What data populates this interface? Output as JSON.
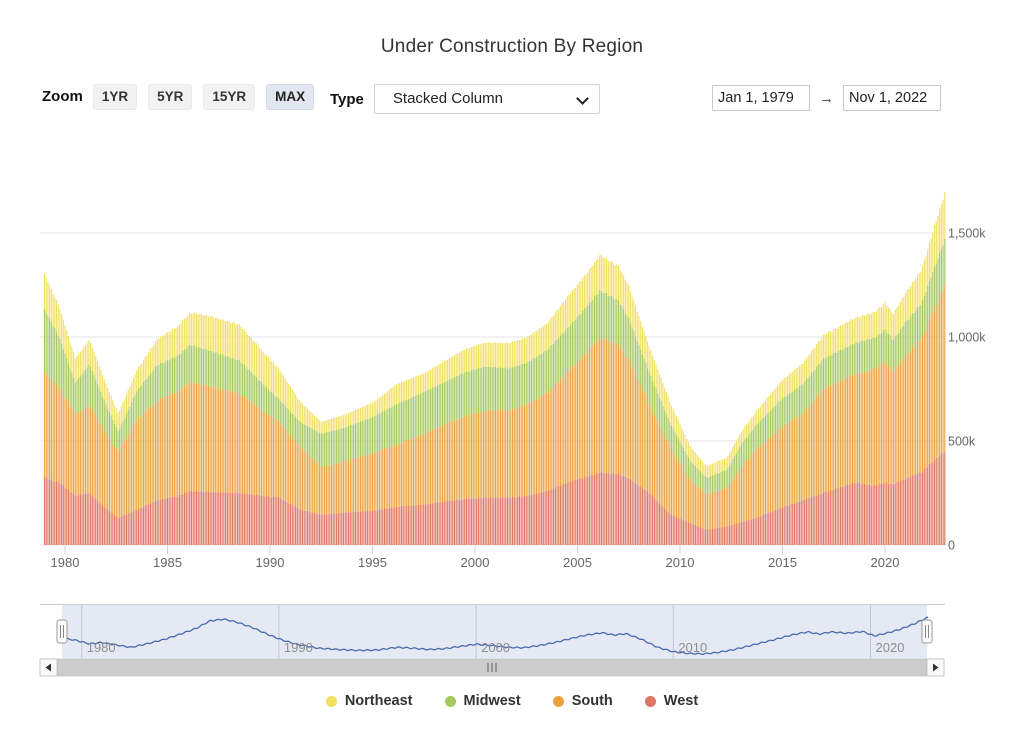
{
  "header": {
    "title": "Under Construction By Region"
  },
  "toolbar": {
    "zoom_label": "Zoom",
    "zoom_buttons": [
      {
        "label": "1YR",
        "active": false
      },
      {
        "label": "5YR",
        "active": false
      },
      {
        "label": "15YR",
        "active": false
      },
      {
        "label": "MAX",
        "active": true
      }
    ],
    "type_label": "Type",
    "type_value": "Stacked Column",
    "date_from": "Jan 1, 1979",
    "range_arrow": "→",
    "date_to": "Nov 1, 2022"
  },
  "legend": {
    "items": [
      {
        "label": "Northeast",
        "color": "#f2e05f"
      },
      {
        "label": "Midwest",
        "color": "#a4c95f"
      },
      {
        "label": "South",
        "color": "#eba23e"
      },
      {
        "label": "West",
        "color": "#df7562"
      }
    ]
  },
  "chart_data": {
    "type": "bar",
    "stacked": true,
    "title": "Under Construction By Region",
    "x_unit": "decimal year, monthly bars Jan 1979 - Nov 2022",
    "x_range": [
      1979.0,
      2022.9167
    ],
    "values_unit": "thousands of housing units",
    "ylim_thousands": [
      0,
      1750
    ],
    "grid": true,
    "y_ticks": [
      {
        "value": 0,
        "label": "0"
      },
      {
        "value": 500,
        "label": "500k"
      },
      {
        "value": 1000,
        "label": "1,000k"
      },
      {
        "value": 1500,
        "label": "1,500k"
      }
    ],
    "x_ticks": [
      1980,
      1985,
      1990,
      1995,
      2000,
      2005,
      2010,
      2015,
      2020
    ],
    "stack_order_bottom_to_top": [
      "West",
      "South",
      "Midwest",
      "Northeast"
    ],
    "series": [
      {
        "name": "West",
        "color": "#df7562",
        "points": [
          [
            1979,
            325
          ],
          [
            1979.7,
            300
          ],
          [
            1980.5,
            240
          ],
          [
            1981.2,
            250
          ],
          [
            1982,
            175
          ],
          [
            1982.6,
            130
          ],
          [
            1983.5,
            170
          ],
          [
            1984.5,
            215
          ],
          [
            1985.5,
            235
          ],
          [
            1986.1,
            260
          ],
          [
            1987,
            255
          ],
          [
            1988.5,
            250
          ],
          [
            1990,
            232
          ],
          [
            1990.4,
            230
          ],
          [
            1991.5,
            170
          ],
          [
            1992.5,
            145
          ],
          [
            1993.5,
            155
          ],
          [
            1995,
            165
          ],
          [
            1996.2,
            184
          ],
          [
            1997.5,
            195
          ],
          [
            1999,
            215
          ],
          [
            1999.5,
            220
          ],
          [
            2000.5,
            228
          ],
          [
            2001.7,
            227
          ],
          [
            2002.5,
            235
          ],
          [
            2003.5,
            260
          ],
          [
            2004.5,
            300
          ],
          [
            2005.5,
            330
          ],
          [
            2006.1,
            348
          ],
          [
            2007,
            340
          ],
          [
            2007.5,
            320
          ],
          [
            2008.5,
            250
          ],
          [
            2009.5,
            150
          ],
          [
            2010.5,
            105
          ],
          [
            2011.3,
            73
          ],
          [
            2012.3,
            90
          ],
          [
            2013,
            110
          ],
          [
            2013.7,
            130
          ],
          [
            2015,
            180
          ],
          [
            2016,
            215
          ],
          [
            2017,
            250
          ],
          [
            2018.5,
            300
          ],
          [
            2019.5,
            285
          ],
          [
            2020,
            300
          ],
          [
            2020.4,
            290
          ],
          [
            2021,
            320
          ],
          [
            2021.8,
            350
          ],
          [
            2022.3,
            400
          ],
          [
            2022.92,
            450
          ]
        ]
      },
      {
        "name": "South",
        "color": "#eba23e",
        "points": [
          [
            1979,
            508
          ],
          [
            1979.7,
            460
          ],
          [
            1980.5,
            390
          ],
          [
            1981.2,
            420
          ],
          [
            1982,
            360
          ],
          [
            1982.6,
            320
          ],
          [
            1983.5,
            430
          ],
          [
            1984.5,
            480
          ],
          [
            1985.5,
            500
          ],
          [
            1986.1,
            523
          ],
          [
            1987,
            510
          ],
          [
            1988.5,
            480
          ],
          [
            1990.4,
            365
          ],
          [
            1991.5,
            300
          ],
          [
            1992.5,
            230
          ],
          [
            1993.5,
            245
          ],
          [
            1995,
            275
          ],
          [
            1996.2,
            300
          ],
          [
            1997.5,
            340
          ],
          [
            1999.5,
            400
          ],
          [
            2000.5,
            420
          ],
          [
            2001.7,
            420
          ],
          [
            2002.5,
            440
          ],
          [
            2003.5,
            470
          ],
          [
            2004.5,
            530
          ],
          [
            2005.5,
            600
          ],
          [
            2006.1,
            649
          ],
          [
            2007,
            620
          ],
          [
            2007.5,
            570
          ],
          [
            2008.5,
            430
          ],
          [
            2009.5,
            320
          ],
          [
            2010.5,
            210
          ],
          [
            2011.3,
            169
          ],
          [
            2012.3,
            185
          ],
          [
            2013,
            270
          ],
          [
            2013.7,
            330
          ],
          [
            2015,
            390
          ],
          [
            2016,
            420
          ],
          [
            2017,
            500
          ],
          [
            2018.5,
            520
          ],
          [
            2019.5,
            560
          ],
          [
            2020,
            580
          ],
          [
            2020.4,
            545
          ],
          [
            2021,
            590
          ],
          [
            2021.8,
            640
          ],
          [
            2022.3,
            710
          ],
          [
            2022.92,
            800
          ]
        ]
      },
      {
        "name": "Midwest",
        "color": "#a4c95f",
        "points": [
          [
            1979,
            300
          ],
          [
            1979.7,
            245
          ],
          [
            1980.5,
            150
          ],
          [
            1981.2,
            200
          ],
          [
            1982,
            140
          ],
          [
            1982.6,
            95
          ],
          [
            1983.5,
            140
          ],
          [
            1984.5,
            170
          ],
          [
            1985.5,
            175
          ],
          [
            1986.1,
            179
          ],
          [
            1987,
            172
          ],
          [
            1988.5,
            158
          ],
          [
            1990.4,
            110
          ],
          [
            1991.5,
            120
          ],
          [
            1992.5,
            160
          ],
          [
            1993.5,
            160
          ],
          [
            1995,
            175
          ],
          [
            1996.2,
            194
          ],
          [
            1997.5,
            200
          ],
          [
            1999.5,
            210
          ],
          [
            2000.5,
            210
          ],
          [
            2001.7,
            203
          ],
          [
            2002.5,
            200
          ],
          [
            2003.5,
            205
          ],
          [
            2004.5,
            212
          ],
          [
            2005.5,
            222
          ],
          [
            2006.1,
            227
          ],
          [
            2007,
            215
          ],
          [
            2007.5,
            200
          ],
          [
            2008.5,
            150
          ],
          [
            2009.5,
            120
          ],
          [
            2010.5,
            90
          ],
          [
            2011.3,
            81
          ],
          [
            2012.3,
            88
          ],
          [
            2013,
            105
          ],
          [
            2013.7,
            115
          ],
          [
            2015,
            135
          ],
          [
            2016,
            140
          ],
          [
            2017,
            146
          ],
          [
            2018.5,
            150
          ],
          [
            2019.5,
            152
          ],
          [
            2020,
            155
          ],
          [
            2020.4,
            150
          ],
          [
            2021,
            160
          ],
          [
            2021.8,
            175
          ],
          [
            2022.3,
            195
          ],
          [
            2022.92,
            218
          ]
        ]
      },
      {
        "name": "Northeast",
        "color": "#f2e05f",
        "points": [
          [
            1979,
            169
          ],
          [
            1979.7,
            145
          ],
          [
            1980.5,
            120
          ],
          [
            1981.2,
            115
          ],
          [
            1982,
            100
          ],
          [
            1982.6,
            87
          ],
          [
            1983.5,
            100
          ],
          [
            1984.5,
            125
          ],
          [
            1985.5,
            140
          ],
          [
            1986.1,
            155
          ],
          [
            1987,
            165
          ],
          [
            1988.5,
            172
          ],
          [
            1990,
            150
          ],
          [
            1990.4,
            148
          ],
          [
            1991.5,
            95
          ],
          [
            1992.5,
            58
          ],
          [
            1993.5,
            62
          ],
          [
            1995,
            68
          ],
          [
            1996.2,
            97
          ],
          [
            1997.5,
            90
          ],
          [
            1999.5,
            110
          ],
          [
            2000.5,
            115
          ],
          [
            2001.7,
            121
          ],
          [
            2002.5,
            122
          ],
          [
            2003.5,
            128
          ],
          [
            2004.5,
            150
          ],
          [
            2005.5,
            160
          ],
          [
            2006.1,
            170
          ],
          [
            2007,
            165
          ],
          [
            2007.5,
            155
          ],
          [
            2008.5,
            125
          ],
          [
            2009.5,
            100
          ],
          [
            2010.5,
            70
          ],
          [
            2011.3,
            56
          ],
          [
            2012.3,
            58
          ],
          [
            2013,
            62
          ],
          [
            2013.7,
            65
          ],
          [
            2015,
            90
          ],
          [
            2016,
            100
          ],
          [
            2017,
            112
          ],
          [
            2018.5,
            120
          ],
          [
            2019.5,
            122
          ],
          [
            2020,
            130
          ],
          [
            2020.4,
            125
          ],
          [
            2021,
            140
          ],
          [
            2021.8,
            160
          ],
          [
            2022.3,
            190
          ],
          [
            2022.92,
            226
          ]
        ]
      }
    ],
    "navigator": {
      "line_color": "#4a6bae",
      "labels": [
        1980,
        1990,
        2000,
        2010,
        2020
      ],
      "points_normalized": [
        [
          1979,
          0.43
        ],
        [
          1979.7,
          0.38
        ],
        [
          1980.4,
          0.3
        ],
        [
          1981,
          0.33
        ],
        [
          1981.8,
          0.27
        ],
        [
          1982.5,
          0.22
        ],
        [
          1983.3,
          0.3
        ],
        [
          1984.2,
          0.4
        ],
        [
          1985,
          0.52
        ],
        [
          1985.8,
          0.65
        ],
        [
          1986.5,
          0.82
        ],
        [
          1987.2,
          0.86
        ],
        [
          1987.8,
          0.8
        ],
        [
          1988.6,
          0.68
        ],
        [
          1989.4,
          0.52
        ],
        [
          1990.2,
          0.38
        ],
        [
          1991,
          0.28
        ],
        [
          1992,
          0.2
        ],
        [
          1993,
          0.17
        ],
        [
          1994,
          0.15
        ],
        [
          1995,
          0.16
        ],
        [
          1996,
          0.22
        ],
        [
          1996.8,
          0.2
        ],
        [
          1997.6,
          0.17
        ],
        [
          1998.4,
          0.19
        ],
        [
          1999.2,
          0.24
        ],
        [
          2000,
          0.29
        ],
        [
          2000.8,
          0.26
        ],
        [
          2001.6,
          0.22
        ],
        [
          2002.4,
          0.21
        ],
        [
          2003.2,
          0.26
        ],
        [
          2004,
          0.33
        ],
        [
          2004.8,
          0.42
        ],
        [
          2005.6,
          0.5
        ],
        [
          2006.4,
          0.55
        ],
        [
          2007,
          0.5
        ],
        [
          2007.6,
          0.53
        ],
        [
          2008.4,
          0.4
        ],
        [
          2009.2,
          0.22
        ],
        [
          2010,
          0.12
        ],
        [
          2010.8,
          0.08
        ],
        [
          2011.5,
          0.07
        ],
        [
          2012.2,
          0.1
        ],
        [
          2013,
          0.16
        ],
        [
          2014,
          0.27
        ],
        [
          2015,
          0.38
        ],
        [
          2016,
          0.5
        ],
        [
          2016.8,
          0.57
        ],
        [
          2017.4,
          0.52
        ],
        [
          2018,
          0.57
        ],
        [
          2018.8,
          0.54
        ],
        [
          2019.6,
          0.58
        ],
        [
          2020.2,
          0.48
        ],
        [
          2020.8,
          0.54
        ],
        [
          2021.5,
          0.63
        ],
        [
          2022.2,
          0.75
        ],
        [
          2022.9,
          0.9
        ]
      ]
    },
    "legend_entries": [
      "Northeast",
      "Midwest",
      "South",
      "West"
    ]
  }
}
